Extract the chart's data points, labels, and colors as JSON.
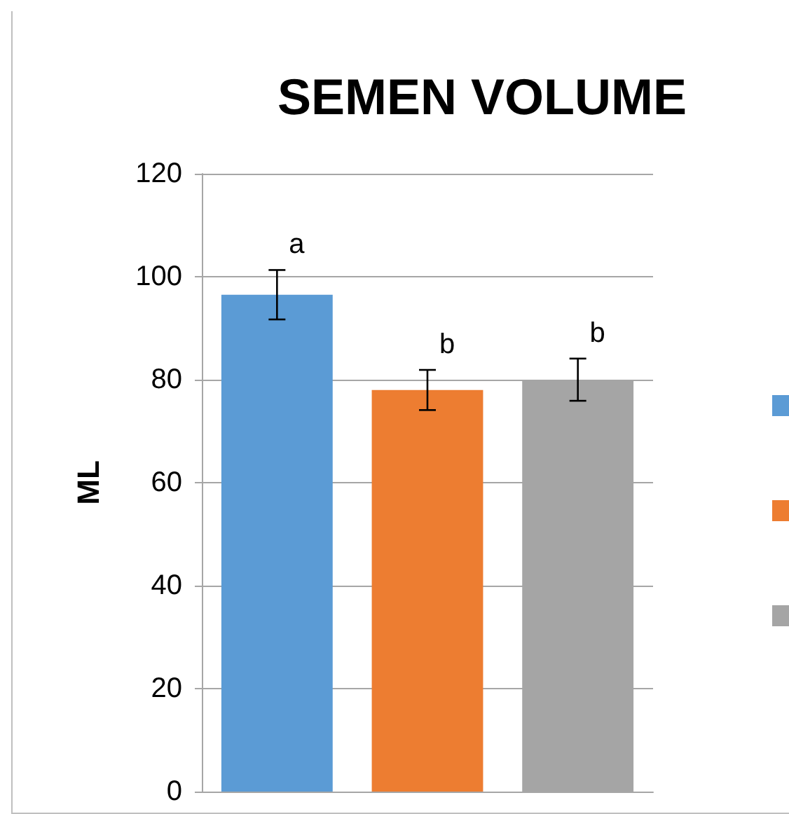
{
  "chart_data": {
    "type": "bar",
    "title": "SEMEN VOLUME",
    "ylabel": "ML",
    "categories": [
      null,
      null,
      null
    ],
    "values": [
      96.5,
      78,
      80
    ],
    "colors": [
      "#5b9bd5",
      "#ed7d31",
      "#a5a5a5"
    ],
    "errors": [
      4.8,
      3.9,
      4.1
    ],
    "value_labels": [
      "a",
      "b",
      "b"
    ],
    "ylim": [
      0,
      120
    ],
    "yticks": [
      0,
      20,
      40,
      60,
      80,
      100,
      120
    ],
    "grid": "y"
  }
}
